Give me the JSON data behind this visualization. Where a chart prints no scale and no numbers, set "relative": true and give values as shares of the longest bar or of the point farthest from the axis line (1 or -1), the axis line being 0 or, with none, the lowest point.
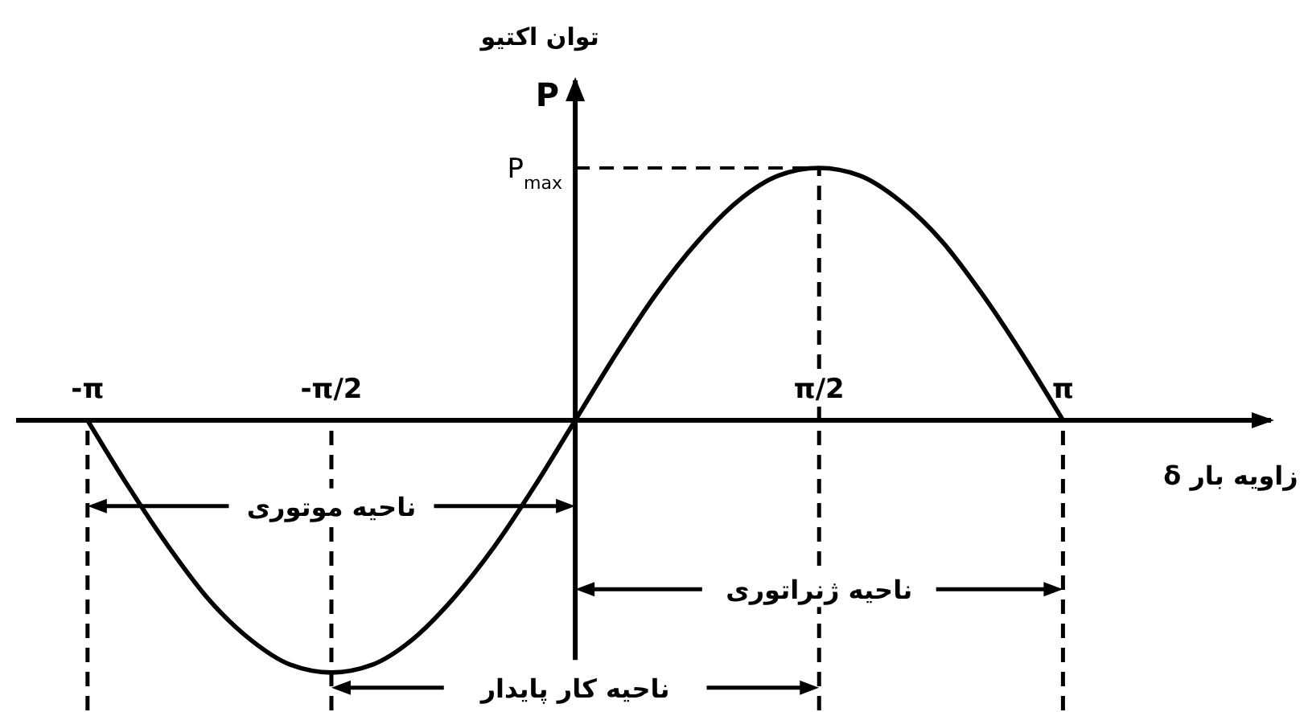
{
  "chart_data": {
    "type": "line",
    "relative": true,
    "xlabel": "زاویه بار δ",
    "ylabel": "توان اکتیو",
    "annotations": [
      "P",
      "ناحیه موتوری",
      "ناحیه ژنراتوری",
      "ناحیه کار پایدار"
    ],
    "x": [
      -3.14,
      -2.88,
      -2.62,
      -2.36,
      -2.09,
      -1.83,
      -1.57,
      -1.31,
      -1.05,
      -0.79,
      -0.52,
      -0.26,
      0,
      0.26,
      0.52,
      0.79,
      1.05,
      1.31,
      1.57,
      1.83,
      2.09,
      2.36,
      2.62,
      2.88,
      3.14
    ],
    "values": [
      0,
      -0.26,
      -0.5,
      -0.71,
      -0.87,
      -0.97,
      -1,
      -0.97,
      -0.87,
      -0.71,
      -0.5,
      -0.26,
      0,
      0.26,
      0.5,
      0.71,
      0.87,
      0.97,
      1,
      0.97,
      0.87,
      0.71,
      0.5,
      0.26,
      0
    ],
    "color": "#000000",
    "xlim": [
      -3.6,
      4.5
    ],
    "xticks": [
      {
        "value": -3.14,
        "label": "-π"
      },
      {
        "value": -1.57,
        "label": "-π/2"
      },
      {
        "value": 1.57,
        "label": "π/2"
      },
      {
        "value": 3.14,
        "label": "π"
      }
    ],
    "ref_lines": [
      {
        "axis": "x",
        "value": -3.14,
        "line_style": "dashed"
      },
      {
        "axis": "x",
        "value": -1.57,
        "line_style": "dashed"
      },
      {
        "axis": "x",
        "value": 1.57,
        "line_style": "dashed"
      },
      {
        "axis": "x",
        "value": 3.14,
        "line_style": "dashed"
      },
      {
        "axis": "y",
        "value": 1,
        "label": "P$_{max}$",
        "line_style": "dashed"
      }
    ]
  }
}
